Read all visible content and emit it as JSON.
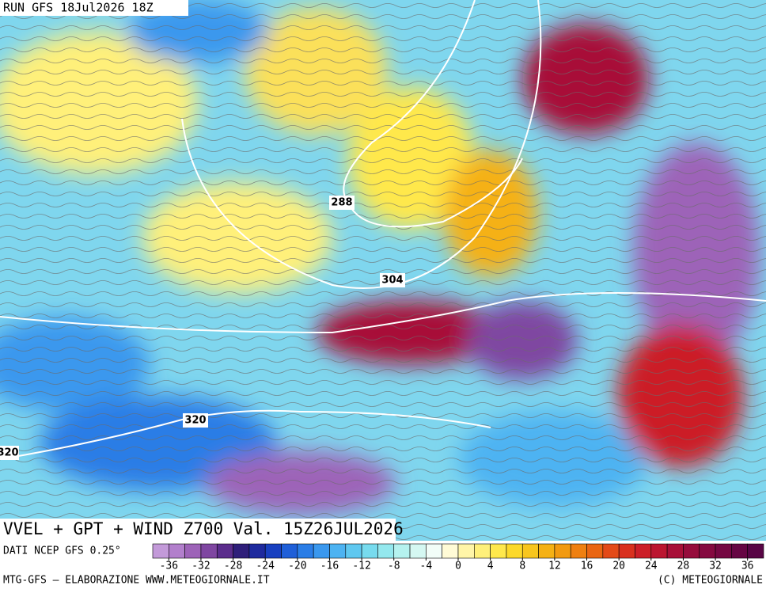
{
  "header": {
    "run": "RUN GFS 18Jul2026 18Z"
  },
  "map": {
    "title": "VVEL + GPT + WIND Z700 Val. 15Z26JUL2026",
    "contour_labels": [
      "288",
      "304",
      "320",
      "320"
    ]
  },
  "colorbar": {
    "range": [
      -38,
      38
    ],
    "ticks": [
      -36,
      -32,
      -28,
      -24,
      -20,
      -16,
      -12,
      -8,
      -4,
      0,
      4,
      8,
      12,
      16,
      20,
      24,
      28,
      32,
      36
    ],
    "colors": [
      "#c39ad9",
      "#b27fcc",
      "#9d63b8",
      "#7f46a1",
      "#5b2d8c",
      "#2f1f7a",
      "#1e2a9e",
      "#1840c0",
      "#1f5fd8",
      "#2a7de6",
      "#3a98ee",
      "#4db3f2",
      "#5fc8f0",
      "#77dbee",
      "#94e8ee",
      "#b5f2ef",
      "#d5f8f2",
      "#f2fdf8",
      "#fffbd6",
      "#fff5a8",
      "#fff07a",
      "#ffe84c",
      "#fcd92a",
      "#f8c61e",
      "#f5b114",
      "#f29a10",
      "#ef8010",
      "#ea6612",
      "#e34a18",
      "#d9301e",
      "#cc1e28",
      "#bb1530",
      "#a80f38",
      "#960c3c",
      "#850a40",
      "#750842",
      "#660643",
      "#580545"
    ]
  },
  "footer": {
    "source": "DATI NCEP GFS 0.25°",
    "credit": "MTG-GFS — ELABORAZIONE WWW.METEOGIORNALE.IT",
    "copyright": "(C) METEOGIORNALE"
  }
}
